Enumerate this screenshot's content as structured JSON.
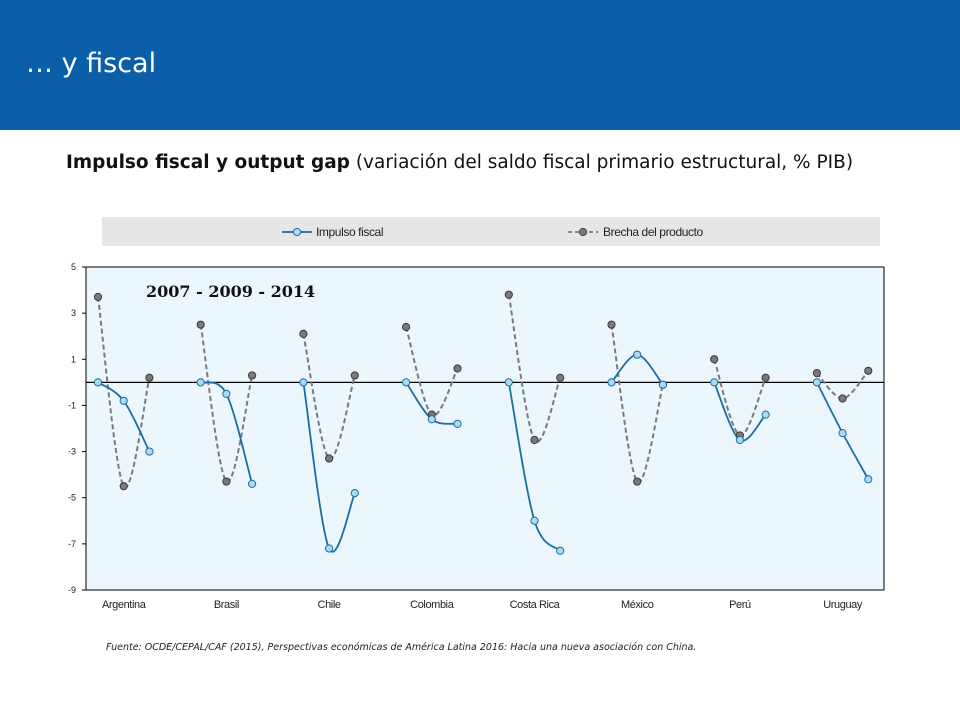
{
  "header": {
    "title": "… y fiscal"
  },
  "chart_title": {
    "bold": "Impulso fiscal y output gap",
    "rest": " (variación del saldo fiscal primario estructural, % PIB)"
  },
  "source": "Fuente: OCDE/CEPAL/CAF (2015), Perspectivas económicas de América Latina 2016: Hacia una nueva asociación con China.",
  "colors": {
    "header_bg": "#0a5fa8",
    "plot_bg": "#ebf7fd",
    "impulso_line": "#1b6ea3",
    "impulso_marker": "#a9dbef",
    "brecha_line": "#7a7a7a",
    "brecha_marker": "#7a7a7a",
    "legend_bg": "#e6e6e6"
  },
  "chart_data": {
    "type": "line",
    "annotation": "2007 - 2009 - 2014",
    "categories": [
      "Argentina",
      "Brasil",
      "Chile",
      "Colombia",
      "Costa Rica",
      "México",
      "Perú",
      "Uruguay"
    ],
    "points_per_category": [
      "2007",
      "2009",
      "2014"
    ],
    "yticks": [
      5,
      3,
      1,
      -1,
      -3,
      -5,
      -7,
      -9
    ],
    "ylim": [
      -9,
      5
    ],
    "series": [
      {
        "name": "Impulso fiscal",
        "style": "solid",
        "values": [
          [
            0,
            -0.8,
            -3.0
          ],
          [
            0,
            -0.5,
            -4.4
          ],
          [
            0,
            -7.2,
            -4.8
          ],
          [
            0,
            -1.6,
            -1.8
          ],
          [
            0,
            -6.0,
            -7.3
          ],
          [
            0,
            1.2,
            -0.1
          ],
          [
            0,
            -2.5,
            -1.4
          ],
          [
            0,
            -2.2,
            -4.2
          ]
        ]
      },
      {
        "name": "Brecha del producto",
        "style": "dashed",
        "values": [
          [
            3.7,
            -4.5,
            0.2
          ],
          [
            2.5,
            -4.3,
            0.3
          ],
          [
            2.1,
            -3.3,
            0.3
          ],
          [
            2.4,
            -1.4,
            0.6
          ],
          [
            3.8,
            -2.5,
            0.2
          ],
          [
            2.5,
            -4.3,
            -0.1
          ],
          [
            1.0,
            -2.3,
            0.2
          ],
          [
            0.4,
            -0.7,
            0.5
          ]
        ]
      }
    ]
  }
}
